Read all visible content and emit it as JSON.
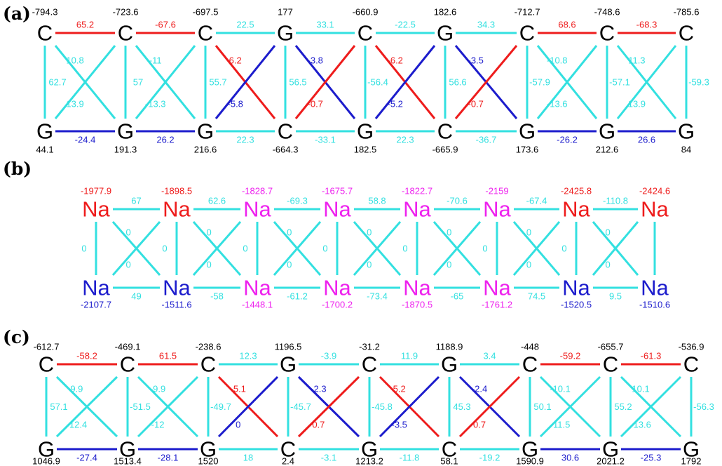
{
  "colors": {
    "black": "#000000",
    "red": "#ee1c1c",
    "blue": "#1c1ccc",
    "cyan": "#33e0e0",
    "magenta": "#ee22ee"
  },
  "panels": [
    {
      "label": "(a)",
      "top_nodes": [
        {
          "sym": "C",
          "val": "-794.3"
        },
        {
          "sym": "C",
          "val": "-723.6"
        },
        {
          "sym": "C",
          "val": "-697.5"
        },
        {
          "sym": "G",
          "val": "177"
        },
        {
          "sym": "C",
          "val": "-660.9"
        },
        {
          "sym": "G",
          "val": "182.6"
        },
        {
          "sym": "C",
          "val": "-712.7"
        },
        {
          "sym": "C",
          "val": "-748.6"
        },
        {
          "sym": "C",
          "val": "-785.6"
        }
      ],
      "bottom_nodes": [
        {
          "sym": "G",
          "val": "44.1"
        },
        {
          "sym": "G",
          "val": "191.3"
        },
        {
          "sym": "G",
          "val": "216.6"
        },
        {
          "sym": "C",
          "val": "-664.3"
        },
        {
          "sym": "G",
          "val": "182.5"
        },
        {
          "sym": "C",
          "val": "-665.9"
        },
        {
          "sym": "G",
          "val": "173.6"
        },
        {
          "sym": "G",
          "val": "212.6"
        },
        {
          "sym": "G",
          "val": "84"
        }
      ],
      "node_colors": {
        "top": [
          "black",
          "black",
          "black",
          "black",
          "black",
          "black",
          "black",
          "black",
          "black"
        ],
        "bottom": [
          "black",
          "black",
          "black",
          "black",
          "black",
          "black",
          "black",
          "black",
          "black"
        ]
      },
      "top_edges": [
        {
          "v": "65.2",
          "c": "red"
        },
        {
          "v": "-67.6",
          "c": "red"
        },
        {
          "v": "22.5",
          "c": "cyan"
        },
        {
          "v": "33.1",
          "c": "cyan"
        },
        {
          "v": "-22.5",
          "c": "cyan"
        },
        {
          "v": "34.3",
          "c": "cyan"
        },
        {
          "v": "68.6",
          "c": "red"
        },
        {
          "v": "-68.3",
          "c": "red"
        }
      ],
      "bottom_edges": [
        {
          "v": "-24.4",
          "c": "blue"
        },
        {
          "v": "26.2",
          "c": "blue"
        },
        {
          "v": "22.3",
          "c": "cyan"
        },
        {
          "v": "-33.1",
          "c": "cyan"
        },
        {
          "v": "22.3",
          "c": "cyan"
        },
        {
          "v": "-36.7",
          "c": "cyan"
        },
        {
          "v": "-26.2",
          "c": "blue"
        },
        {
          "v": "26.6",
          "c": "blue"
        }
      ],
      "verticals": [
        {
          "v": "62.7",
          "c": "cyan",
          "side": "right"
        },
        {
          "v": "57",
          "c": "cyan",
          "side": "right"
        },
        {
          "v": "55.7",
          "c": "cyan",
          "side": "right"
        },
        {
          "v": "56.5",
          "c": "cyan",
          "side": "right"
        },
        {
          "v": "-56.4",
          "c": "cyan",
          "side": "right"
        },
        {
          "v": "56.6",
          "c": "cyan",
          "side": "right"
        },
        {
          "v": "-57.9",
          "c": "cyan",
          "side": "right"
        },
        {
          "v": "-57.1",
          "c": "cyan",
          "side": "right"
        },
        {
          "v": "-59.3",
          "c": "cyan",
          "side": "right"
        }
      ],
      "diag_down": [
        {
          "v": "10.8",
          "c": "cyan"
        },
        {
          "v": "-11",
          "c": "cyan"
        },
        {
          "v": "6.2",
          "c": "red"
        },
        {
          "v": "-3.8",
          "c": "blue"
        },
        {
          "v": "-6.2",
          "c": "red"
        },
        {
          "v": "-3.5",
          "c": "blue"
        },
        {
          "v": "-10.8",
          "c": "cyan"
        },
        {
          "v": "11.3",
          "c": "cyan"
        }
      ],
      "diag_up": [
        {
          "v": "13.9",
          "c": "cyan"
        },
        {
          "v": "-13.3",
          "c": "cyan"
        },
        {
          "v": "-5.8",
          "c": "blue"
        },
        {
          "v": "-0.7",
          "c": "red"
        },
        {
          "v": "-5.2",
          "c": "blue"
        },
        {
          "v": "-0.7",
          "c": "red"
        },
        {
          "v": "-13.6",
          "c": "cyan"
        },
        {
          "v": "13.9",
          "c": "cyan"
        }
      ],
      "label_colors": {
        "top_val": "black",
        "bottom_val": "black"
      }
    },
    {
      "label": "(b)",
      "top_nodes": [
        {
          "sym": "Na",
          "val": "-1977.9"
        },
        {
          "sym": "Na",
          "val": "-1898.5"
        },
        {
          "sym": "Na",
          "val": "-1828.7"
        },
        {
          "sym": "Na",
          "val": "-1675.7"
        },
        {
          "sym": "Na",
          "val": "-1822.7"
        },
        {
          "sym": "Na",
          "val": "-2159"
        },
        {
          "sym": "Na",
          "val": "-2425.8"
        },
        {
          "sym": "Na",
          "val": "-2424.6"
        }
      ],
      "bottom_nodes": [
        {
          "sym": "Na",
          "val": "-2107.7"
        },
        {
          "sym": "Na",
          "val": "-1511.6"
        },
        {
          "sym": "Na",
          "val": "-1448.1"
        },
        {
          "sym": "Na",
          "val": "-1700.2"
        },
        {
          "sym": "Na",
          "val": "-1870.5"
        },
        {
          "sym": "Na",
          "val": "-1761.2"
        },
        {
          "sym": "Na",
          "val": "-1520.5"
        },
        {
          "sym": "Na",
          "val": "-1510.6"
        }
      ],
      "node_colors": {
        "top": [
          "red",
          "red",
          "magenta",
          "magenta",
          "magenta",
          "magenta",
          "red",
          "red"
        ],
        "bottom": [
          "blue",
          "blue",
          "magenta",
          "magenta",
          "magenta",
          "magenta",
          "blue",
          "blue"
        ]
      },
      "top_edges": [
        {
          "v": "67",
          "c": "cyan"
        },
        {
          "v": "62.6",
          "c": "cyan"
        },
        {
          "v": "-69.3",
          "c": "cyan"
        },
        {
          "v": "58.8",
          "c": "cyan"
        },
        {
          "v": "-70.6",
          "c": "cyan"
        },
        {
          "v": "-67.4",
          "c": "cyan"
        },
        {
          "v": "-110.8",
          "c": "cyan"
        }
      ],
      "bottom_edges": [
        {
          "v": "49",
          "c": "cyan"
        },
        {
          "v": "-58",
          "c": "cyan"
        },
        {
          "v": "-61.2",
          "c": "cyan"
        },
        {
          "v": "-73.4",
          "c": "cyan"
        },
        {
          "v": "-65",
          "c": "cyan"
        },
        {
          "v": "74.5",
          "c": "cyan"
        },
        {
          "v": "9.5",
          "c": "cyan"
        }
      ],
      "verticals": [
        {
          "v": "0",
          "c": "cyan",
          "side": "left"
        },
        {
          "v": "0",
          "c": "cyan",
          "side": "left"
        },
        {
          "v": "0",
          "c": "cyan",
          "side": "left"
        },
        {
          "v": "0",
          "c": "cyan",
          "side": "left"
        },
        {
          "v": "0",
          "c": "cyan",
          "side": "left"
        },
        {
          "v": "0",
          "c": "cyan",
          "side": "left"
        },
        {
          "v": "0",
          "c": "cyan",
          "side": "left"
        },
        {
          "v": "",
          "c": "cyan",
          "side": "left"
        }
      ],
      "diag_down": [
        {
          "v": "0",
          "c": "cyan"
        },
        {
          "v": "0",
          "c": "cyan"
        },
        {
          "v": "0",
          "c": "cyan"
        },
        {
          "v": "0",
          "c": "cyan"
        },
        {
          "v": "0",
          "c": "cyan"
        },
        {
          "v": "0",
          "c": "cyan"
        },
        {
          "v": "0",
          "c": "cyan"
        }
      ],
      "diag_up": [
        {
          "v": "0",
          "c": "cyan"
        },
        {
          "v": "0",
          "c": "cyan"
        },
        {
          "v": "0",
          "c": "cyan"
        },
        {
          "v": "0",
          "c": "cyan"
        },
        {
          "v": "0",
          "c": "cyan"
        },
        {
          "v": "0",
          "c": "cyan"
        },
        {
          "v": "0",
          "c": "cyan"
        }
      ],
      "label_colors": {
        "top_val": "node",
        "bottom_val": "node"
      }
    },
    {
      "label": "(c)",
      "top_nodes": [
        {
          "sym": "C",
          "val": "-612.7"
        },
        {
          "sym": "C",
          "val": "-469.1"
        },
        {
          "sym": "C",
          "val": "-238.6"
        },
        {
          "sym": "G",
          "val": "1196.5"
        },
        {
          "sym": "C",
          "val": "-31.2"
        },
        {
          "sym": "G",
          "val": "1188.9"
        },
        {
          "sym": "C",
          "val": "-448"
        },
        {
          "sym": "C",
          "val": "-655.7"
        },
        {
          "sym": "C",
          "val": "-536.9"
        }
      ],
      "bottom_nodes": [
        {
          "sym": "G",
          "val": "1046.9"
        },
        {
          "sym": "G",
          "val": "1513.4"
        },
        {
          "sym": "G",
          "val": "1520"
        },
        {
          "sym": "C",
          "val": "2.4"
        },
        {
          "sym": "G",
          "val": "1213.2"
        },
        {
          "sym": "C",
          "val": "58.1"
        },
        {
          "sym": "G",
          "val": "1590.9"
        },
        {
          "sym": "G",
          "val": "2021.2"
        },
        {
          "sym": "G",
          "val": "1792"
        }
      ],
      "node_colors": {
        "top": [
          "black",
          "black",
          "black",
          "black",
          "black",
          "black",
          "black",
          "black",
          "black"
        ],
        "bottom": [
          "black",
          "black",
          "black",
          "black",
          "black",
          "black",
          "black",
          "black",
          "black"
        ]
      },
      "top_edges": [
        {
          "v": "-58.2",
          "c": "red"
        },
        {
          "v": "61.5",
          "c": "red"
        },
        {
          "v": "12.3",
          "c": "cyan"
        },
        {
          "v": "-3.9",
          "c": "cyan"
        },
        {
          "v": "11.9",
          "c": "cyan"
        },
        {
          "v": "3.4",
          "c": "cyan"
        },
        {
          "v": "-59.2",
          "c": "red"
        },
        {
          "v": "-61.3",
          "c": "red"
        }
      ],
      "bottom_edges": [
        {
          "v": "-27.4",
          "c": "blue"
        },
        {
          "v": "-28.1",
          "c": "blue"
        },
        {
          "v": "18",
          "c": "cyan"
        },
        {
          "v": "-3.1",
          "c": "cyan"
        },
        {
          "v": "-11.8",
          "c": "cyan"
        },
        {
          "v": "-19.2",
          "c": "cyan"
        },
        {
          "v": "30.6",
          "c": "blue"
        },
        {
          "v": "-25.3",
          "c": "blue"
        }
      ],
      "verticals": [
        {
          "v": "57.1",
          "c": "cyan",
          "side": "right"
        },
        {
          "v": "-51.5",
          "c": "cyan",
          "side": "right"
        },
        {
          "v": "-49.7",
          "c": "cyan",
          "side": "right"
        },
        {
          "v": "-45.7",
          "c": "cyan",
          "side": "right"
        },
        {
          "v": "-45.8",
          "c": "cyan",
          "side": "right"
        },
        {
          "v": "45.3",
          "c": "cyan",
          "side": "right"
        },
        {
          "v": "50.1",
          "c": "cyan",
          "side": "right"
        },
        {
          "v": "55.2",
          "c": "cyan",
          "side": "right"
        },
        {
          "v": "-56.3",
          "c": "cyan",
          "side": "right"
        }
      ],
      "diag_down": [
        {
          "v": "9.9",
          "c": "cyan"
        },
        {
          "v": "-9.9",
          "c": "cyan"
        },
        {
          "v": "-5.1",
          "c": "red"
        },
        {
          "v": "-2.3",
          "c": "blue"
        },
        {
          "v": "5.2",
          "c": "red"
        },
        {
          "v": "-2.4",
          "c": "blue"
        },
        {
          "v": "-10.1",
          "c": "cyan"
        },
        {
          "v": "10.1",
          "c": "cyan"
        }
      ],
      "diag_up": [
        {
          "v": "-12.4",
          "c": "cyan"
        },
        {
          "v": "-12",
          "c": "cyan"
        },
        {
          "v": "0",
          "c": "blue"
        },
        {
          "v": "0.7",
          "c": "red"
        },
        {
          "v": "-3.5",
          "c": "blue"
        },
        {
          "v": "0.7",
          "c": "red"
        },
        {
          "v": "-11.5",
          "c": "cyan"
        },
        {
          "v": "-13.6",
          "c": "cyan"
        }
      ],
      "label_colors": {
        "top_val": "black",
        "bottom_val": "black"
      }
    }
  ]
}
